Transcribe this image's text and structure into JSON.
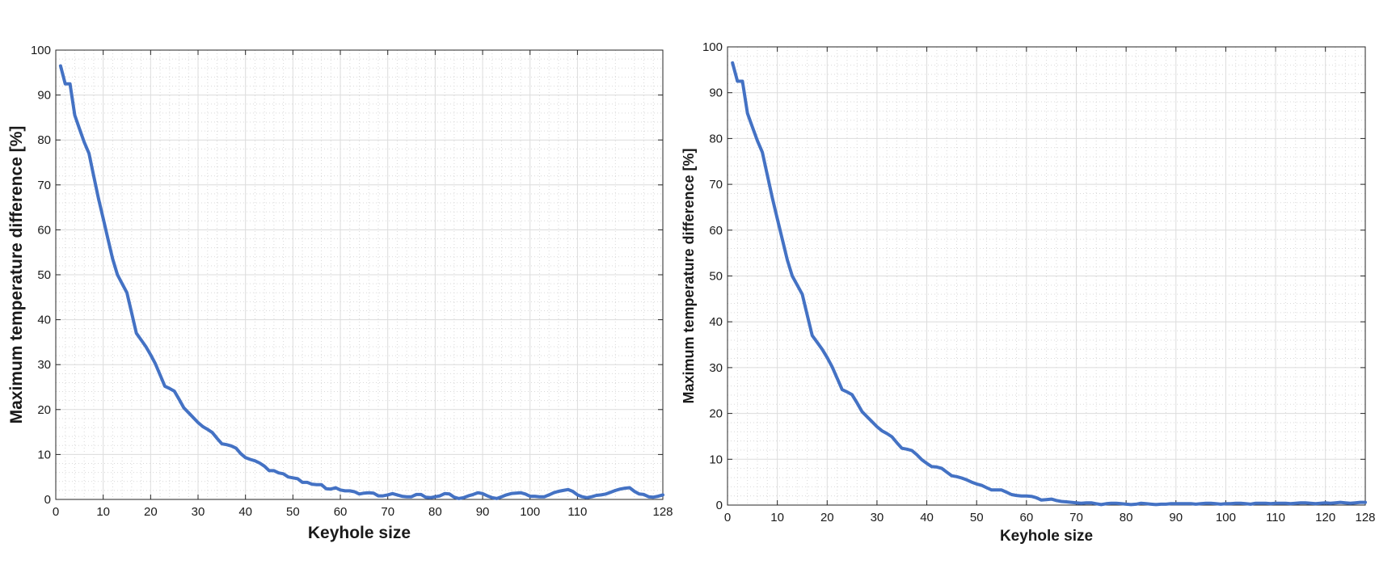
{
  "chart_data": [
    {
      "type": "line",
      "xlabel": "Keyhole size",
      "ylabel": "Maximum temperature difference [%]",
      "xlim": [
        0,
        128
      ],
      "ylim": [
        0,
        100
      ],
      "xticks": [
        0,
        10,
        20,
        30,
        40,
        50,
        60,
        70,
        80,
        90,
        100,
        110,
        128
      ],
      "yticks": [
        0,
        10,
        20,
        30,
        40,
        50,
        60,
        70,
        80,
        90,
        100
      ],
      "grid": true,
      "minor_grid": true,
      "line_color": "#4472C4",
      "series": [
        {
          "x": [
            1,
            2,
            3,
            4,
            5,
            6,
            7,
            8,
            9,
            10,
            11,
            12,
            13,
            14,
            15,
            16,
            17,
            18,
            19,
            20,
            21,
            22,
            23,
            24,
            25,
            26,
            27,
            28,
            29,
            30,
            31,
            32,
            33,
            34,
            35,
            36,
            37,
            38,
            39,
            40,
            41,
            42,
            43,
            44,
            45,
            46,
            47,
            48,
            49,
            50,
            51,
            52,
            53,
            54,
            55,
            56,
            57,
            58,
            59,
            60,
            61,
            62,
            63,
            64,
            65,
            66,
            67,
            68,
            69,
            70,
            71,
            72,
            73,
            74,
            75,
            76,
            77,
            78,
            79,
            80,
            81,
            82,
            83,
            84,
            85,
            86,
            87,
            88,
            89,
            90,
            91,
            92,
            93,
            94,
            95,
            96,
            97,
            98,
            99,
            100,
            101,
            102,
            103,
            104,
            105,
            106,
            107,
            108,
            109,
            110,
            111,
            112,
            113,
            114,
            115,
            116,
            117,
            118,
            119,
            120,
            121,
            122,
            123,
            124,
            125,
            126,
            127,
            128
          ],
          "y": [
            96.5,
            92.5,
            92.5,
            85.5,
            82.5,
            79.5,
            77,
            72,
            67,
            62.5,
            58,
            53.5,
            50,
            48,
            46,
            41.5,
            37,
            35.5,
            34,
            32.2,
            30.2,
            27.7,
            25.2,
            24.7,
            24.1,
            22.3,
            20.4,
            19.3,
            18.2,
            17.1,
            16.2,
            15.6,
            14.9,
            13.6,
            12.4,
            12.2,
            11.9,
            11.4,
            10.2,
            9.3,
            8.9,
            8.6,
            8.1,
            7.4,
            6.4,
            6.4,
            5.9,
            5.7,
            5.0,
            4.8,
            4.6,
            3.8,
            3.8,
            3.4,
            3.3,
            3.3,
            2.4,
            2.3,
            2.6,
            2.1,
            1.9,
            1.9,
            1.7,
            1.2,
            1.4,
            1.5,
            1.4,
            0.8,
            0.8,
            1.0,
            1.3,
            1.0,
            0.7,
            0.6,
            0.6,
            1.1,
            1.1,
            0.5,
            0.4,
            0.6,
            0.8,
            1.3,
            1.2,
            0.5,
            0.2,
            0.4,
            0.8,
            1.1,
            1.5,
            1.3,
            0.8,
            0.4,
            0.2,
            0.6,
            1.0,
            1.3,
            1.4,
            1.5,
            1.2,
            0.7,
            0.7,
            0.6,
            0.6,
            1.0,
            1.5,
            1.8,
            2.0,
            2.2,
            1.8,
            1.0,
            0.6,
            0.4,
            0.6,
            0.9,
            1.0,
            1.2,
            1.6,
            2.0,
            2.3,
            2.5,
            2.6,
            1.8,
            1.2,
            1.1,
            0.6,
            0.5,
            0.7,
            1.0
          ]
        }
      ]
    },
    {
      "type": "line",
      "xlabel": "Keyhole size",
      "ylabel": "Maximum temperature difference [%]",
      "xlim": [
        0,
        128
      ],
      "ylim": [
        0,
        100
      ],
      "xticks": [
        0,
        10,
        20,
        30,
        40,
        50,
        60,
        70,
        80,
        90,
        100,
        110,
        120,
        128
      ],
      "yticks": [
        0,
        10,
        20,
        30,
        40,
        50,
        60,
        70,
        80,
        90,
        100
      ],
      "grid": true,
      "minor_grid": true,
      "line_color": "#4472C4",
      "series": [
        {
          "x": [
            1,
            2,
            3,
            4,
            5,
            6,
            7,
            8,
            9,
            10,
            11,
            12,
            13,
            14,
            15,
            16,
            17,
            18,
            19,
            20,
            21,
            22,
            23,
            24,
            25,
            26,
            27,
            28,
            29,
            30,
            31,
            32,
            33,
            34,
            35,
            36,
            37,
            38,
            39,
            40,
            41,
            42,
            43,
            44,
            45,
            46,
            47,
            48,
            49,
            50,
            51,
            52,
            53,
            54,
            55,
            56,
            57,
            58,
            59,
            60,
            61,
            62,
            63,
            64,
            65,
            66,
            67,
            68,
            69,
            70,
            71,
            72,
            73,
            74,
            75,
            76,
            77,
            78,
            79,
            80,
            81,
            82,
            83,
            84,
            85,
            86,
            87,
            88,
            89,
            90,
            91,
            92,
            93,
            94,
            95,
            96,
            97,
            98,
            99,
            100,
            101,
            102,
            103,
            104,
            105,
            106,
            107,
            108,
            109,
            110,
            111,
            112,
            113,
            114,
            115,
            116,
            117,
            118,
            119,
            120,
            121,
            122,
            123,
            124,
            125,
            126,
            127,
            128
          ],
          "y": [
            96.5,
            92.5,
            92.5,
            85.5,
            82.5,
            79.5,
            77,
            72,
            67,
            62.5,
            58,
            53.5,
            50,
            48,
            46,
            41.5,
            37,
            35.5,
            34,
            32.2,
            30.2,
            27.7,
            25.2,
            24.7,
            24.1,
            22.3,
            20.4,
            19.3,
            18.2,
            17.1,
            16.2,
            15.6,
            14.9,
            13.6,
            12.4,
            12.2,
            11.9,
            11.0,
            9.9,
            9.1,
            8.4,
            8.3,
            8.0,
            7.2,
            6.4,
            6.2,
            5.9,
            5.5,
            5.0,
            4.6,
            4.3,
            3.8,
            3.3,
            3.3,
            3.3,
            2.8,
            2.3,
            2.1,
            2.0,
            2.0,
            1.9,
            1.6,
            1.1,
            1.2,
            1.3,
            1.0,
            0.8,
            0.7,
            0.6,
            0.5,
            0.4,
            0.5,
            0.5,
            0.3,
            0.1,
            0.3,
            0.4,
            0.4,
            0.3,
            0.2,
            0.1,
            0.2,
            0.4,
            0.3,
            0.2,
            0.1,
            0.2,
            0.2,
            0.3,
            0.3,
            0.3,
            0.3,
            0.3,
            0.2,
            0.3,
            0.4,
            0.4,
            0.3,
            0.2,
            0.3,
            0.3,
            0.4,
            0.4,
            0.3,
            0.2,
            0.4,
            0.4,
            0.4,
            0.3,
            0.4,
            0.4,
            0.4,
            0.3,
            0.4,
            0.5,
            0.5,
            0.4,
            0.3,
            0.4,
            0.5,
            0.4,
            0.5,
            0.6,
            0.5,
            0.4,
            0.5,
            0.6,
            0.6
          ]
        }
      ]
    }
  ]
}
